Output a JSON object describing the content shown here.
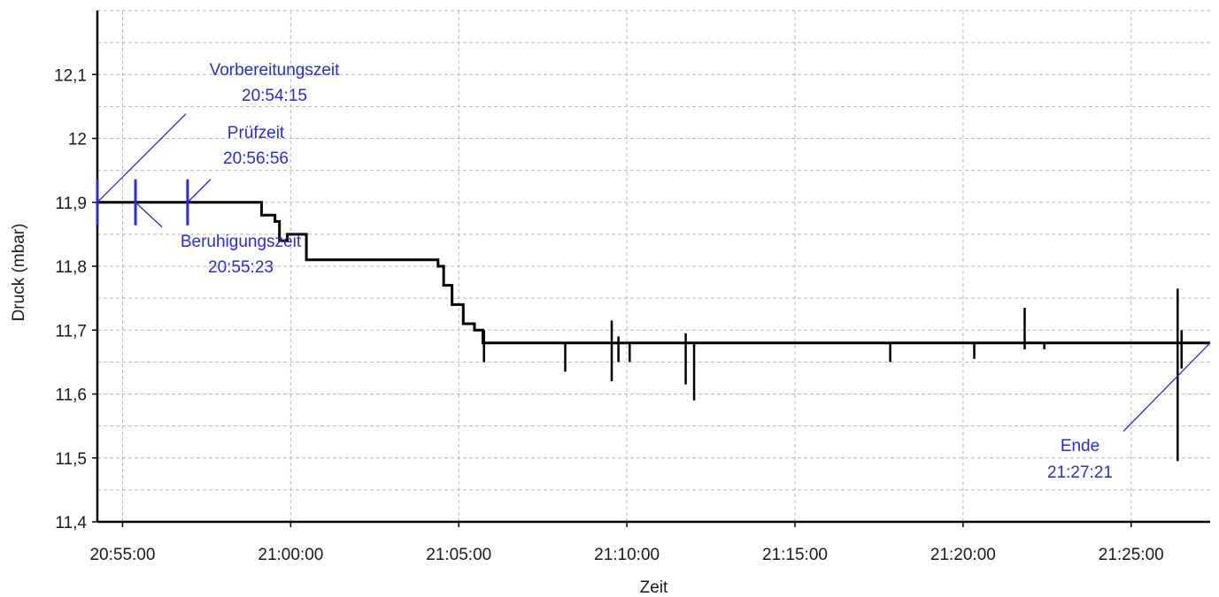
{
  "chart_data": {
    "type": "line",
    "title": "",
    "xlabel": "Zeit",
    "ylabel": "Druck (mbar)",
    "x_unit": "time_of_day",
    "xlim": [
      "20:54:15",
      "21:27:21"
    ],
    "ylim": [
      11.4,
      12.2
    ],
    "x_ticks": [
      "20:55:00",
      "21:00:00",
      "21:05:00",
      "21:10:00",
      "21:15:00",
      "21:20:00",
      "21:25:00"
    ],
    "y_ticks": [
      {
        "value": 11.4,
        "label": "11,4"
      },
      {
        "value": 11.5,
        "label": "11,5"
      },
      {
        "value": 11.6,
        "label": "11,6"
      },
      {
        "value": 11.7,
        "label": "11,7"
      },
      {
        "value": 11.8,
        "label": "11,8"
      },
      {
        "value": 11.9,
        "label": "11,9"
      },
      {
        "value": 12.0,
        "label": "12"
      },
      {
        "value": 12.1,
        "label": "12,1"
      }
    ],
    "grid": true,
    "grid_style": "dashed",
    "series": [
      {
        "name": "",
        "color": "#000000",
        "points": [
          [
            "20:54:15",
            11.9
          ],
          [
            "20:59:05",
            11.9
          ],
          [
            "20:59:08",
            11.88
          ],
          [
            "20:59:30",
            11.88
          ],
          [
            "20:59:32",
            11.87
          ],
          [
            "20:59:38",
            11.87
          ],
          [
            "20:59:40",
            11.84
          ],
          [
            "20:59:52",
            11.84
          ],
          [
            "20:59:54",
            11.85
          ],
          [
            "21:00:25",
            11.85
          ],
          [
            "21:00:28",
            11.81
          ],
          [
            "21:04:20",
            11.81
          ],
          [
            "21:04:23",
            11.8
          ],
          [
            "21:04:30",
            11.8
          ],
          [
            "21:04:33",
            11.77
          ],
          [
            "21:04:45",
            11.77
          ],
          [
            "21:04:48",
            11.74
          ],
          [
            "21:05:05",
            11.74
          ],
          [
            "21:05:08",
            11.71
          ],
          [
            "21:05:25",
            11.71
          ],
          [
            "21:05:28",
            11.7
          ],
          [
            "21:05:40",
            11.7
          ],
          [
            "21:05:43",
            11.68
          ],
          [
            "21:27:21",
            11.68
          ]
        ]
      }
    ],
    "spikes": [
      {
        "x": "21:05:45",
        "min": 11.65,
        "max": 11.7
      },
      {
        "x": "21:08:10",
        "min": 11.635,
        "max": 11.68
      },
      {
        "x": "21:09:33",
        "min": 11.62,
        "max": 11.715
      },
      {
        "x": "21:09:45",
        "min": 11.65,
        "max": 11.69
      },
      {
        "x": "21:10:05",
        "min": 11.65,
        "max": 11.68
      },
      {
        "x": "21:11:45",
        "min": 11.615,
        "max": 11.695
      },
      {
        "x": "21:12:00",
        "min": 11.59,
        "max": 11.68
      },
      {
        "x": "21:17:50",
        "min": 11.65,
        "max": 11.68
      },
      {
        "x": "21:20:20",
        "min": 11.655,
        "max": 11.68
      },
      {
        "x": "21:21:50",
        "min": 11.67,
        "max": 11.735
      },
      {
        "x": "21:22:25",
        "min": 11.67,
        "max": 11.68
      },
      {
        "x": "21:26:23",
        "min": 11.495,
        "max": 11.765
      },
      {
        "x": "21:26:30",
        "min": 11.64,
        "max": 11.7
      }
    ],
    "annotations": [
      {
        "name": "Vorbereitungszeit",
        "time": "20:54:15",
        "y": 11.9
      },
      {
        "name": "Beruhigungszeit",
        "time": "20:55:23",
        "y": 11.9
      },
      {
        "name": "Prüfzeit",
        "time": "20:56:56",
        "y": 11.9
      },
      {
        "name": "Ende",
        "time": "21:27:21",
        "y": 11.68
      }
    ],
    "annotation_color": "#2b2bd6"
  }
}
